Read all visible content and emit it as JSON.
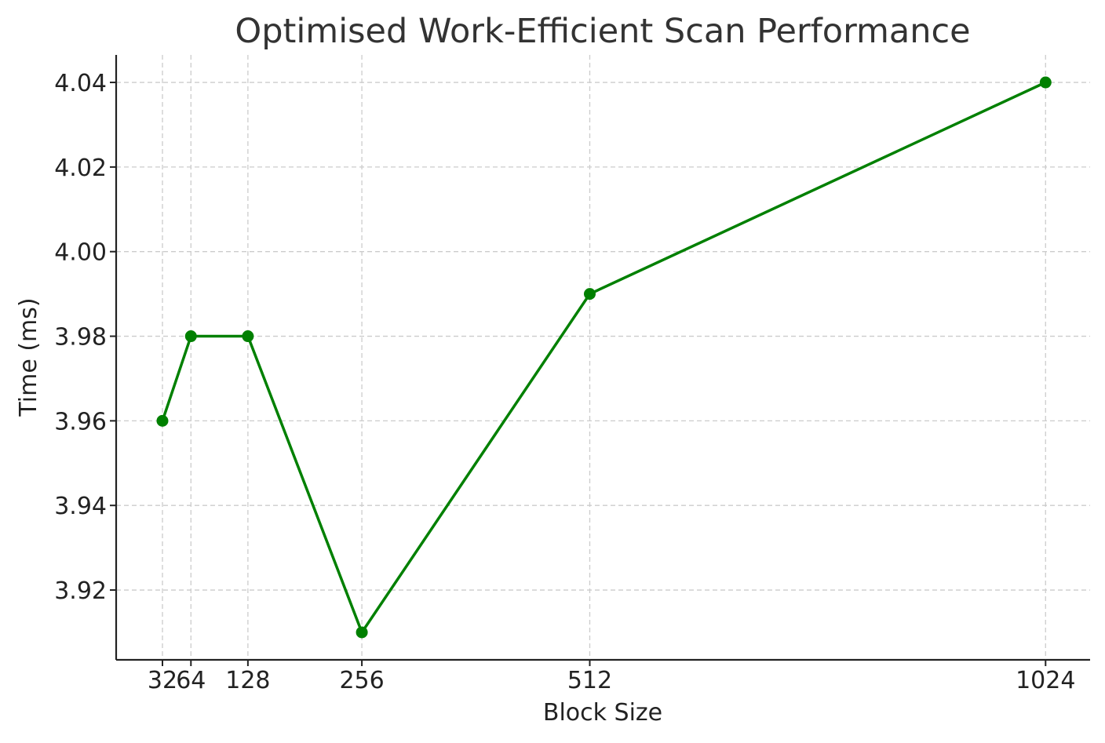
{
  "chart_data": {
    "type": "line",
    "title": "Optimised Work-Efficient Scan Performance",
    "xlabel": "Block Size",
    "ylabel": "Time (ms)",
    "x": [
      32,
      64,
      128,
      256,
      512,
      1024
    ],
    "x_tick_labels": [
      "32",
      "64",
      "128",
      "256",
      "512",
      "1024"
    ],
    "y_ticks": [
      3.92,
      3.94,
      3.96,
      3.98,
      4.0,
      4.02,
      4.04
    ],
    "y_tick_labels": [
      "3.92",
      "3.94",
      "3.96",
      "3.98",
      "4.00",
      "4.02",
      "4.04"
    ],
    "xlim": [
      -20,
      1074
    ],
    "ylim": [
      3.9035,
      4.0465
    ],
    "grid": true,
    "series": [
      {
        "values": [
          3.96,
          3.98,
          3.98,
          3.91,
          3.99,
          4.04
        ],
        "color": "#008000",
        "marker": "circle"
      }
    ]
  }
}
